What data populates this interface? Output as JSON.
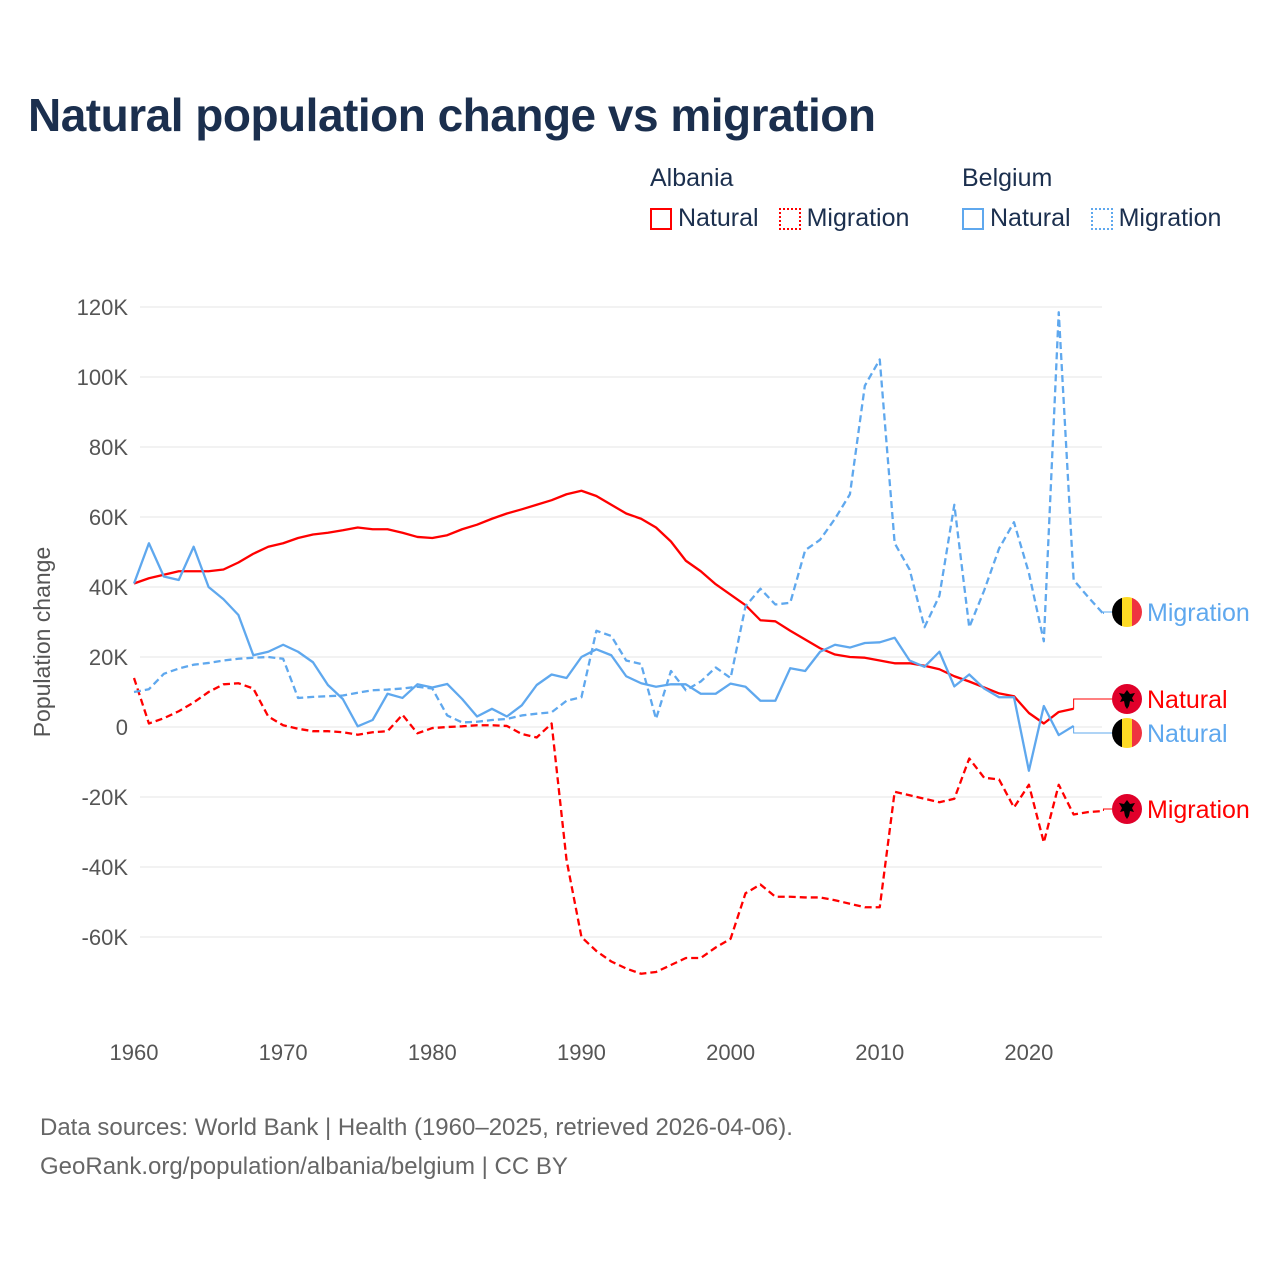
{
  "colors": {
    "albania": "#ff0000",
    "belgium": "#5fa8ee",
    "grid": "#e6e6e6",
    "flag_albania": "#e0002a"
  },
  "chart_data": {
    "type": "line",
    "title": "Natural population change vs migration",
    "xlabel": "",
    "ylabel": "Population change",
    "xlim": [
      1960,
      2025
    ],
    "ylim": [
      -80000,
      125000
    ],
    "grid": true,
    "x_ticks": [
      1960,
      1970,
      1980,
      1990,
      2000,
      2010,
      2020
    ],
    "x_tick_labels": [
      "1960",
      "1970",
      "1980",
      "1990",
      "2000",
      "2010",
      "2020"
    ],
    "y_ticks": [
      120000,
      100000,
      80000,
      60000,
      40000,
      20000,
      0,
      -20000,
      -40000,
      -60000
    ],
    "y_tick_labels": [
      "120K",
      "100K",
      "80K",
      "60K",
      "40K",
      "20K",
      "0",
      "-20K",
      "-40K",
      "-60K"
    ],
    "legend": {
      "position": "top-right",
      "groups": [
        {
          "country": "Albania",
          "items": [
            "Natural",
            "Migration"
          ]
        },
        {
          "country": "Belgium",
          "items": [
            "Natural",
            "Migration"
          ]
        }
      ]
    },
    "series": [
      {
        "name": "Albania Natural",
        "country": "albania",
        "label": "Natural",
        "dash": false,
        "start": 1960,
        "values": [
          41000,
          42500,
          43500,
          44500,
          44500,
          44500,
          45000,
          47000,
          49500,
          51500,
          52500,
          54000,
          55000,
          55500,
          56200,
          57000,
          56500,
          56500,
          55500,
          54300,
          54000,
          54800,
          56500,
          57800,
          59500,
          61000,
          62200,
          63500,
          64800,
          66500,
          67500,
          66000,
          63500,
          61000,
          59500,
          57000,
          53000,
          47500,
          44500,
          40800,
          37800,
          34800,
          30500,
          30200,
          27500,
          25000,
          22500,
          20700,
          20000,
          19800,
          19000,
          18200,
          18200,
          17500,
          16500,
          14500,
          13000,
          11300,
          9600,
          8800,
          4000,
          1000,
          4300,
          5200
        ]
      },
      {
        "name": "Albania Migration",
        "country": "albania",
        "label": "Migration",
        "dash": true,
        "start": 1960,
        "values": [
          14000,
          1000,
          2500,
          4500,
          7000,
          10000,
          12200,
          12500,
          11000,
          3000,
          500,
          -500,
          -1200,
          -1200,
          -1500,
          -2200,
          -1500,
          -1200,
          3500,
          -1800,
          -300,
          0,
          200,
          500,
          500,
          300,
          -2000,
          -3000,
          1000,
          -38000,
          -60000,
          -64000,
          -67000,
          -69000,
          -70500,
          -70000,
          -68000,
          -66000,
          -66000,
          -63000,
          -60500,
          -47500,
          -45000,
          -48500,
          -48500,
          -48700,
          -48700,
          -49500,
          -50500,
          -51500,
          -51500,
          -18500,
          -19500,
          -20500,
          -21500,
          -20500,
          -9000,
          -14500,
          -15000,
          -23000,
          -16500,
          -33000,
          -16500,
          -25000,
          -24300,
          -24000
        ]
      },
      {
        "name": "Belgium Natural",
        "country": "belgium",
        "label": "Natural",
        "dash": false,
        "start": 1960,
        "values": [
          41000,
          52500,
          43000,
          42000,
          51500,
          40000,
          36500,
          32000,
          20500,
          21500,
          23500,
          21500,
          18500,
          12000,
          8000,
          200,
          2000,
          9500,
          8300,
          12200,
          11300,
          12300,
          8000,
          3000,
          5200,
          3000,
          6200,
          12000,
          15000,
          14000,
          20000,
          22200,
          20500,
          14500,
          12500,
          11500,
          12200,
          12200,
          9500,
          9500,
          12400,
          11500,
          7500,
          7500,
          16800,
          16000,
          21500,
          23500,
          22700,
          24000,
          24200,
          25500,
          19000,
          17200,
          21500,
          11600,
          15000,
          11000,
          8500,
          8500,
          -12500,
          6000,
          -2300,
          300
        ]
      },
      {
        "name": "Belgium Migration",
        "country": "belgium",
        "label": "Migration",
        "dash": true,
        "start": 1960,
        "values": [
          10000,
          10800,
          15200,
          16700,
          17800,
          18300,
          19000,
          19500,
          19800,
          20000,
          19500,
          8300,
          8600,
          8800,
          9000,
          9800,
          10500,
          10700,
          11000,
          11500,
          11000,
          3300,
          1300,
          1500,
          2000,
          2300,
          3300,
          3800,
          4200,
          7500,
          8500,
          27500,
          26000,
          19000,
          18000,
          2300,
          16000,
          10500,
          13000,
          17000,
          14000,
          34500,
          39500,
          35000,
          35500,
          50500,
          53500,
          59500,
          66500,
          97500,
          105000,
          52500,
          45000,
          28500,
          37500,
          63500,
          28500,
          39000,
          51000,
          58500,
          44000,
          24500,
          118500,
          42000,
          37000,
          32300
        ]
      }
    ]
  },
  "legend": {
    "albania": {
      "country": "Albania",
      "natural": "Natural",
      "migration": "Migration"
    },
    "belgium": {
      "country": "Belgium",
      "natural": "Natural",
      "migration": "Migration"
    }
  },
  "footer": {
    "line1": "Data sources: World Bank | Health (1960–2025, retrieved 2026-04-06).",
    "line2": "GeoRank.org/population/albania/belgium | CC BY"
  }
}
